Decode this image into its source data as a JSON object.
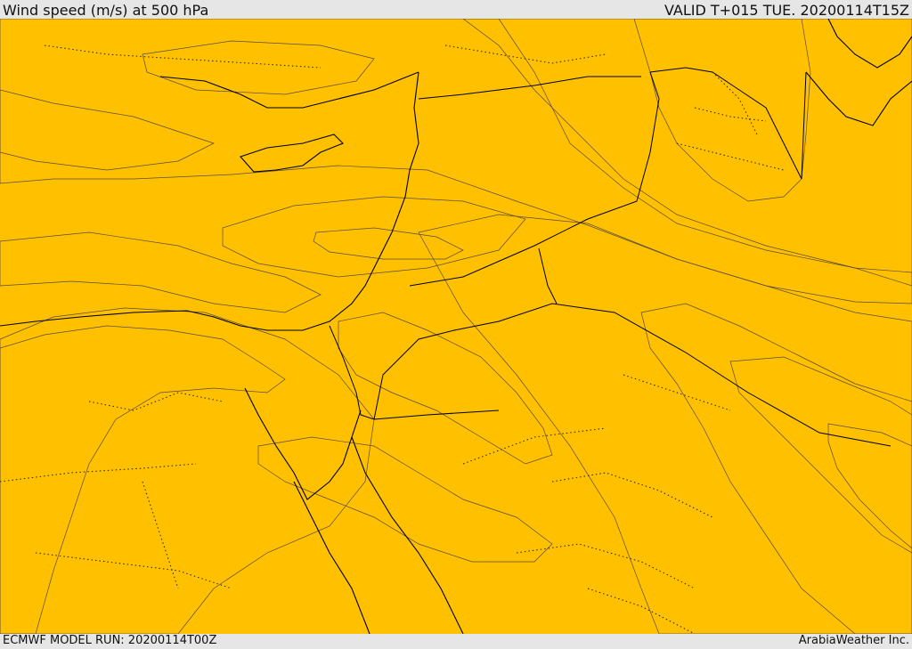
{
  "header": {
    "title": "Wind speed (m/s) at 500 hPa",
    "valid": "VALID T+015 TUE. 20200114T15Z"
  },
  "footer": {
    "model_run": "ECMWF MODEL RUN: 20200114T00Z",
    "credit": "ArabiaWeather Inc."
  },
  "palette": {
    "band_1": "#fde0b0",
    "band_2": "#ffff00",
    "band_3": "#ffe000",
    "band_4": "#ffc000",
    "band_5": "#ffa500",
    "band_6": "#ff8000",
    "band_7": "#ff5a00",
    "band_8": "#ff3300"
  },
  "icons": {
    "coastline": "coastline-lines",
    "borders": "country-border-lines",
    "admin": "admin-boundary-dotted"
  }
}
